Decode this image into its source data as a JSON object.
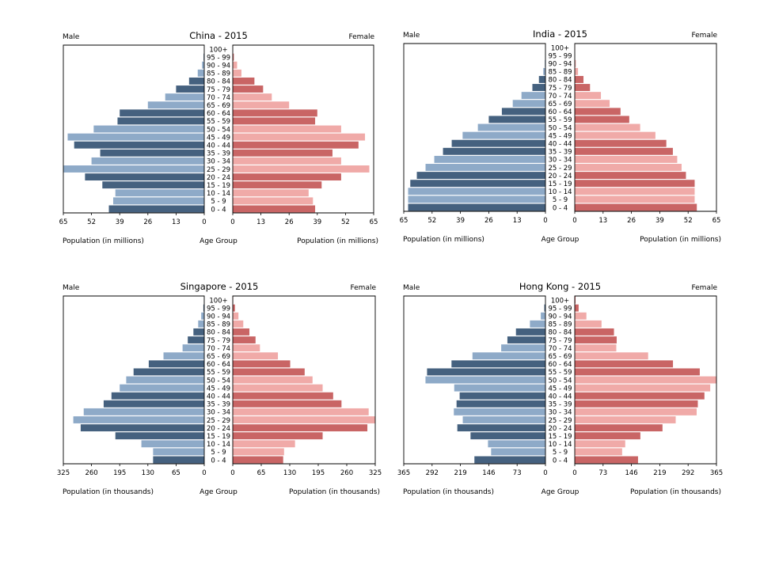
{
  "colors": {
    "male_dark": "#45617f",
    "male_light": "#8eaac8",
    "female_dark": "#c96565",
    "female_light": "#f0aaa8"
  },
  "chart_data": [
    {
      "type": "bar",
      "title": "China - 2015",
      "male_label": "Male",
      "female_label": "Female",
      "center_label": "Age Group",
      "left_xlabel": "Population (in millions)",
      "right_xlabel": "Population (in millions)",
      "xlim": [
        0,
        65
      ],
      "ticks": [
        "65",
        "52",
        "39",
        "26",
        "13",
        "0"
      ],
      "right_ticks": [
        "0",
        "13",
        "26",
        "39",
        "52",
        "65"
      ],
      "categories": [
        "0 - 4",
        "5 - 9",
        "10 - 14",
        "15 - 19",
        "20 - 24",
        "25 - 29",
        "30 - 34",
        "35 - 39",
        "40 - 44",
        "45 - 49",
        "50 - 54",
        "55 - 59",
        "60 - 64",
        "65 - 69",
        "70 - 74",
        "75 - 79",
        "80 - 84",
        "85 - 89",
        "90 - 94",
        "95 - 99",
        "100+"
      ],
      "series": [
        {
          "name": "Male",
          "values": [
            44,
            42,
            41,
            47,
            55,
            65,
            52,
            48,
            60,
            63,
            51,
            40,
            39,
            26,
            18,
            13,
            7,
            3,
            1,
            0.3,
            0.05
          ]
        },
        {
          "name": "Female",
          "values": [
            38,
            37,
            35,
            41,
            50,
            63,
            50,
            46,
            58,
            61,
            50,
            38,
            39,
            26,
            18,
            14,
            10,
            4,
            2,
            0.5,
            0.1
          ]
        }
      ]
    },
    {
      "type": "bar",
      "title": "India - 2015",
      "male_label": "Male",
      "female_label": "Female",
      "center_label": "Age Group",
      "left_xlabel": "Population (in millions)",
      "right_xlabel": "Population (in millions)",
      "xlim": [
        0,
        65
      ],
      "ticks": [
        "65",
        "52",
        "39",
        "26",
        "13",
        "0"
      ],
      "right_ticks": [
        "0",
        "13",
        "26",
        "39",
        "52",
        "65"
      ],
      "categories": [
        "0 - 4",
        "5 - 9",
        "10 - 14",
        "15 - 19",
        "20 - 24",
        "25 - 29",
        "30 - 34",
        "35 - 39",
        "40 - 44",
        "45 - 49",
        "50 - 54",
        "55 - 59",
        "60 - 64",
        "65 - 69",
        "70 - 74",
        "75 - 79",
        "80 - 84",
        "85 - 89",
        "90 - 94",
        "95 - 99",
        "100+"
      ],
      "series": [
        {
          "name": "Male",
          "values": [
            63,
            63,
            63,
            62,
            59,
            55,
            51,
            47,
            43,
            38,
            31,
            26,
            20,
            15,
            11,
            6,
            3,
            1,
            0.3,
            0.1,
            0.05
          ]
        },
        {
          "name": "Female",
          "values": [
            56,
            55,
            55,
            55,
            51,
            49,
            47,
            45,
            42,
            37,
            30,
            25,
            21,
            16,
            12,
            7,
            4,
            1.5,
            0.5,
            0.1,
            0.05
          ]
        }
      ]
    },
    {
      "type": "bar",
      "title": "Singapore - 2015",
      "male_label": "Male",
      "female_label": "Female",
      "center_label": "Age Group",
      "left_xlabel": "Population (in thousands)",
      "right_xlabel": "Population (in thousands)",
      "xlim": [
        0,
        325
      ],
      "ticks": [
        "325",
        "260",
        "195",
        "130",
        "65",
        "0"
      ],
      "right_ticks": [
        "0",
        "65",
        "130",
        "195",
        "260",
        "325"
      ],
      "categories": [
        "0 - 4",
        "5 - 9",
        "10 - 14",
        "15 - 19",
        "20 - 24",
        "25 - 29",
        "30 - 34",
        "35 - 39",
        "40 - 44",
        "45 - 49",
        "50 - 54",
        "55 - 59",
        "60 - 64",
        "65 - 69",
        "70 - 74",
        "75 - 79",
        "80 - 84",
        "85 - 89",
        "90 - 94",
        "95 - 99",
        "100+"
      ],
      "series": [
        {
          "name": "Male",
          "values": [
            118,
            118,
            145,
            205,
            285,
            302,
            278,
            232,
            214,
            195,
            180,
            163,
            128,
            94,
            50,
            38,
            25,
            14,
            7,
            2,
            0.5
          ]
        },
        {
          "name": "Female",
          "values": [
            115,
            117,
            142,
            205,
            307,
            328,
            310,
            248,
            229,
            205,
            182,
            164,
            131,
            103,
            62,
            52,
            38,
            24,
            13,
            5,
            1
          ]
        }
      ]
    },
    {
      "type": "bar",
      "title": "Hong Kong - 2015",
      "male_label": "Male",
      "female_label": "Female",
      "center_label": "Age Group",
      "left_xlabel": "Population (in thousands)",
      "right_xlabel": "Population (in thousands)",
      "xlim": [
        0,
        365
      ],
      "ticks": [
        "365",
        "292",
        "219",
        "146",
        "73",
        "0"
      ],
      "right_ticks": [
        "0",
        "73",
        "146",
        "219",
        "292",
        "365"
      ],
      "categories": [
        "0 - 4",
        "5 - 9",
        "10 - 14",
        "15 - 19",
        "20 - 24",
        "25 - 29",
        "30 - 34",
        "35 - 39",
        "40 - 44",
        "45 - 49",
        "50 - 54",
        "55 - 59",
        "60 - 64",
        "65 - 69",
        "70 - 74",
        "75 - 79",
        "80 - 84",
        "85 - 89",
        "90 - 94",
        "95 - 99",
        "100+"
      ],
      "series": [
        {
          "name": "Male",
          "values": [
            183,
            140,
            148,
            193,
            227,
            213,
            236,
            229,
            221,
            235,
            309,
            305,
            242,
            188,
            114,
            98,
            76,
            40,
            12,
            3,
            0.5
          ]
        },
        {
          "name": "Female",
          "values": [
            163,
            122,
            130,
            169,
            226,
            260,
            314,
            317,
            334,
            349,
            372,
            322,
            253,
            189,
            107,
            108,
            101,
            69,
            30,
            10,
            2
          ]
        }
      ]
    }
  ]
}
